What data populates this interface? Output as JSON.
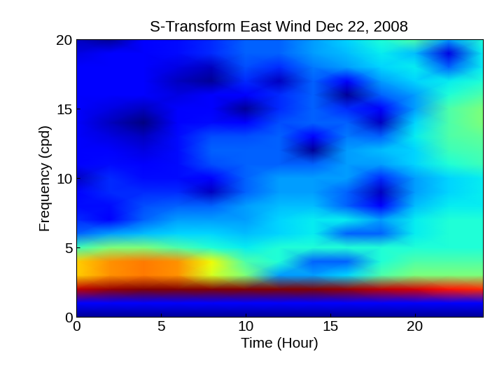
{
  "chart_data": {
    "type": "heatmap",
    "title": "S-Transform East Wind Dec 22, 2008",
    "x_label": "Time (Hour)",
    "y_label": "Frequency (cpd)",
    "xlim": [
      0,
      24
    ],
    "xticks": [
      0,
      5,
      10,
      15,
      20
    ],
    "ylim": [
      0,
      20
    ],
    "yticks": [
      0,
      5,
      10,
      15,
      20
    ],
    "color": "jet",
    "x": [
      0,
      2,
      4,
      6,
      8,
      10,
      12,
      14,
      16,
      18,
      20,
      22,
      24
    ],
    "y": [
      0,
      1,
      2,
      3,
      4,
      5,
      6,
      7,
      8,
      9,
      10,
      11,
      12,
      13,
      14,
      15,
      16,
      17,
      18,
      19,
      20
    ],
    "cells": [
      [
        0.12,
        0.12,
        0.12,
        0.12,
        0.12,
        0.12,
        0.12,
        0.12,
        0.12,
        0.12,
        0.12,
        0.12,
        0.12
      ],
      [
        0.2,
        0.2,
        0.2,
        0.2,
        0.2,
        0.2,
        0.2,
        0.2,
        0.2,
        0.2,
        0.2,
        0.2,
        0.2
      ],
      [
        0.95,
        0.98,
        1.0,
        1.0,
        1.0,
        1.0,
        1.0,
        1.0,
        0.98,
        0.95,
        0.93,
        0.9,
        0.88
      ],
      [
        0.72,
        0.78,
        0.8,
        0.78,
        0.65,
        0.55,
        0.35,
        0.35,
        0.4,
        0.5,
        0.55,
        0.55,
        0.55
      ],
      [
        0.72,
        0.78,
        0.8,
        0.78,
        0.68,
        0.5,
        0.45,
        0.3,
        0.3,
        0.45,
        0.5,
        0.5,
        0.5
      ],
      [
        0.48,
        0.55,
        0.55,
        0.5,
        0.45,
        0.42,
        0.45,
        0.45,
        0.45,
        0.45,
        0.45,
        0.45,
        0.45
      ],
      [
        0.3,
        0.35,
        0.38,
        0.4,
        0.4,
        0.38,
        0.4,
        0.42,
        0.3,
        0.3,
        0.42,
        0.45,
        0.45
      ],
      [
        0.25,
        0.2,
        0.3,
        0.35,
        0.35,
        0.35,
        0.4,
        0.42,
        0.42,
        0.35,
        0.42,
        0.45,
        0.45
      ],
      [
        0.22,
        0.22,
        0.28,
        0.3,
        0.3,
        0.35,
        0.38,
        0.38,
        0.3,
        0.2,
        0.38,
        0.42,
        0.42
      ],
      [
        0.2,
        0.25,
        0.25,
        0.25,
        0.15,
        0.3,
        0.35,
        0.35,
        0.3,
        0.15,
        0.35,
        0.4,
        0.42
      ],
      [
        0.15,
        0.25,
        0.22,
        0.22,
        0.2,
        0.3,
        0.35,
        0.35,
        0.35,
        0.25,
        0.35,
        0.4,
        0.42
      ],
      [
        0.2,
        0.22,
        0.2,
        0.22,
        0.28,
        0.3,
        0.3,
        0.3,
        0.35,
        0.35,
        0.4,
        0.45,
        0.48
      ],
      [
        0.2,
        0.2,
        0.18,
        0.22,
        0.3,
        0.3,
        0.3,
        0.12,
        0.35,
        0.38,
        0.4,
        0.48,
        0.5
      ],
      [
        0.2,
        0.18,
        0.15,
        0.22,
        0.28,
        0.28,
        0.3,
        0.2,
        0.32,
        0.3,
        0.42,
        0.5,
        0.52
      ],
      [
        0.2,
        0.15,
        0.1,
        0.2,
        0.22,
        0.2,
        0.28,
        0.3,
        0.3,
        0.15,
        0.4,
        0.5,
        0.55
      ],
      [
        0.2,
        0.18,
        0.15,
        0.2,
        0.2,
        0.12,
        0.25,
        0.3,
        0.25,
        0.2,
        0.35,
        0.5,
        0.55
      ],
      [
        0.2,
        0.2,
        0.2,
        0.18,
        0.2,
        0.2,
        0.25,
        0.3,
        0.12,
        0.3,
        0.35,
        0.45,
        0.5
      ],
      [
        0.2,
        0.2,
        0.2,
        0.15,
        0.12,
        0.25,
        0.15,
        0.3,
        0.2,
        0.35,
        0.4,
        0.42,
        0.45
      ],
      [
        0.2,
        0.2,
        0.2,
        0.18,
        0.15,
        0.28,
        0.25,
        0.32,
        0.35,
        0.4,
        0.42,
        0.3,
        0.42
      ],
      [
        0.18,
        0.2,
        0.2,
        0.22,
        0.25,
        0.3,
        0.3,
        0.35,
        0.38,
        0.42,
        0.38,
        0.18,
        0.42
      ],
      [
        0.15,
        0.12,
        0.2,
        0.22,
        0.25,
        0.3,
        0.3,
        0.35,
        0.4,
        0.45,
        0.5,
        0.35,
        0.45
      ]
    ]
  }
}
